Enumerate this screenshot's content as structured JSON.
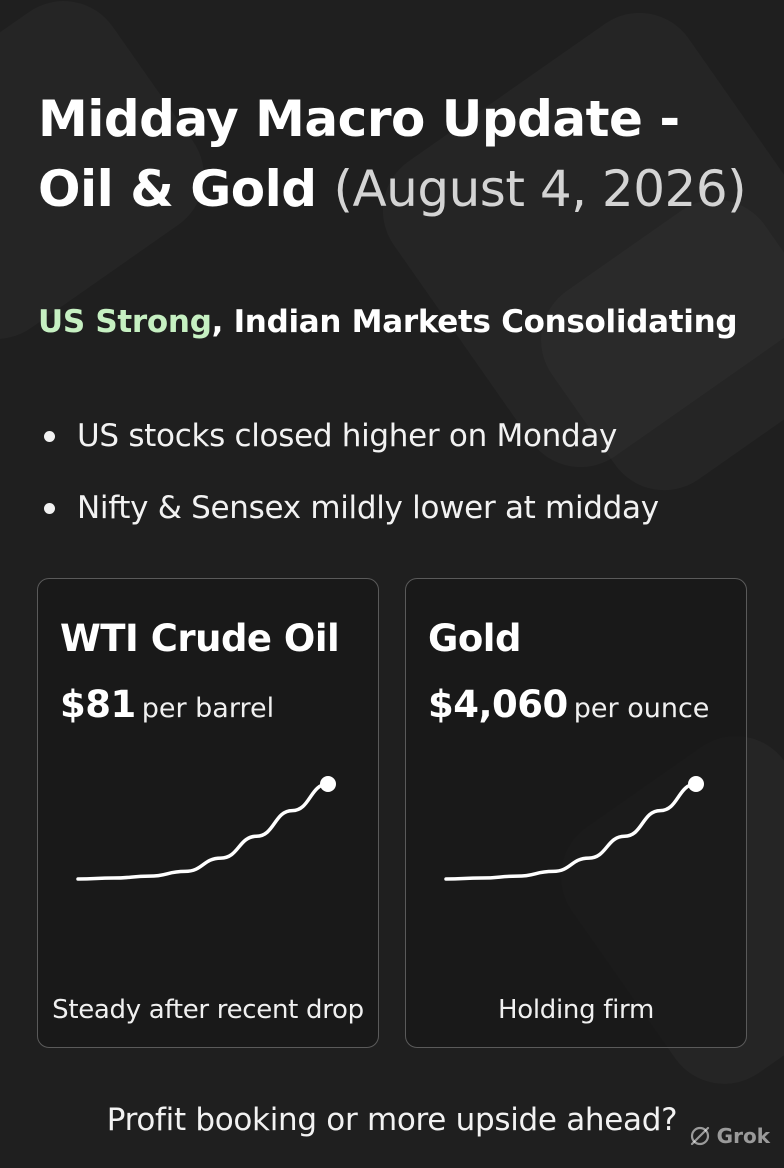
{
  "header": {
    "title_line1": "Midday Macro Update -",
    "title_line2": "Oil & Gold",
    "title_date": "(August 4, 2026)"
  },
  "subheading": {
    "accent": "US Strong",
    "rest": ", Indian Markets Consolidating",
    "accent_color": "#c6f0c2"
  },
  "bullets": [
    "US stocks closed higher on Monday",
    "Nifty & Sensex mildly lower at midday"
  ],
  "cards": [
    {
      "title": "WTI Crude Oil",
      "price": "$81",
      "unit": "per barrel",
      "caption": "Steady after recent drop",
      "trend": [
        0.0,
        0.01,
        0.03,
        0.08,
        0.22,
        0.45,
        0.72,
        1.0
      ]
    },
    {
      "title": "Gold",
      "price": "$4,060",
      "unit": "per ounce",
      "caption": "Holding firm",
      "trend": [
        0.0,
        0.01,
        0.03,
        0.08,
        0.22,
        0.45,
        0.72,
        1.0
      ]
    }
  ],
  "footer": {
    "question": "Profit booking or more upside ahead?"
  },
  "watermark": {
    "text": "Grok",
    "icon": "grok-logo-icon"
  }
}
